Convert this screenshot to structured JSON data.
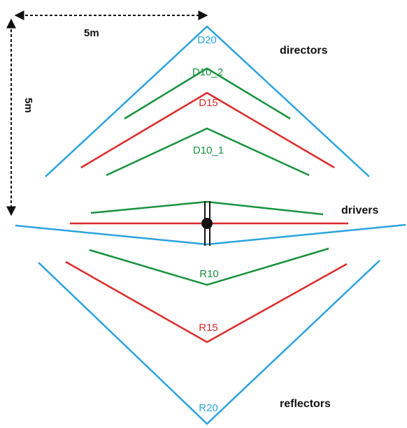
{
  "colors": {
    "blue": "#2aa3e0",
    "green": "#17923c",
    "red": "#dc2a2a",
    "black": "#111111"
  },
  "dimensions": {
    "horizontal": "5m",
    "vertical": "5m"
  },
  "groups": {
    "directors": "directors",
    "drivers": "drivers",
    "reflectors": "reflectors"
  },
  "elements": {
    "D20": "D20",
    "D10_2": "D10_2",
    "D15": "D15",
    "D10_1": "D10_1",
    "R10": "R10",
    "R15": "R15",
    "R20": "R20"
  }
}
